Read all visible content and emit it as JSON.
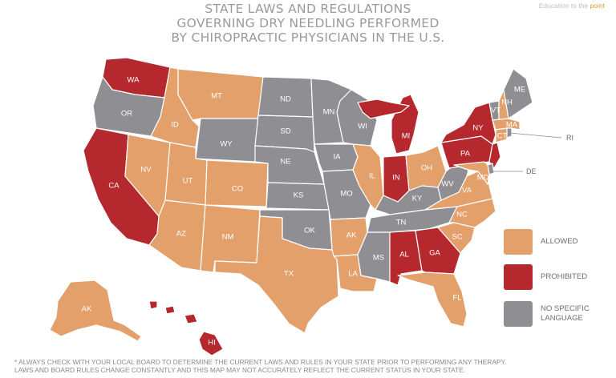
{
  "title": {
    "line1": "STATE LAWS AND REGULATIONS",
    "line2": "GOVERNING DRY NEEDLING PERFORMED",
    "line3": "BY CHIROPRACTIC PHYSICIANS IN THE U.S."
  },
  "brand": {
    "prefix": "Education to the ",
    "accent": "point"
  },
  "colors": {
    "allowed": "#e3a06a",
    "prohibited": "#b5282d",
    "no_specific": "#8e8e93"
  },
  "legend": [
    {
      "key": "allowed",
      "label": "ALLOWED"
    },
    {
      "key": "prohibited",
      "label": "PROHIBITED"
    },
    {
      "key": "no_specific",
      "label": "NO SPECIFIC LANGUAGE"
    }
  ],
  "states": {
    "WA": "prohibited",
    "OR": "no_specific",
    "CA": "prohibited",
    "NV": "allowed",
    "ID": "allowed",
    "MT": "allowed",
    "WY": "no_specific",
    "UT": "allowed",
    "AZ": "allowed",
    "CO": "allowed",
    "NM": "allowed",
    "ND": "no_specific",
    "SD": "no_specific",
    "NE": "no_specific",
    "KS": "no_specific",
    "OK": "no_specific",
    "TX": "allowed",
    "MN": "no_specific",
    "IA": "no_specific",
    "MO": "no_specific",
    "AK": "allowed",
    "LA": "allowed",
    "WI": "no_specific",
    "IL": "allowed",
    "MS": "no_specific",
    "MI": "prohibited",
    "IN": "prohibited",
    "KY": "no_specific",
    "TN": "no_specific",
    "AL": "prohibited",
    "GA": "prohibited",
    "FL": "allowed",
    "SC": "allowed",
    "NC": "allowed",
    "VA": "allowed",
    "WV": "no_specific",
    "OH": "allowed",
    "PA": "prohibited",
    "NY": "prohibited",
    "VT": "no_specific",
    "NH": "allowed",
    "ME": "no_specific",
    "MA": "allowed",
    "CT": "allowed",
    "RI": "no_specific",
    "NJ": "prohibited",
    "DE": "no_specific",
    "MD": "allowed",
    "ALASKA": "allowed",
    "HI": "prohibited"
  },
  "labels": {
    "WA": "WA",
    "OR": "OR",
    "CA": "CA",
    "NV": "NV",
    "ID": "ID",
    "MT": "MT",
    "WY": "WY",
    "UT": "UT",
    "AZ": "AZ",
    "CO": "CO",
    "NM": "NM",
    "ND": "ND",
    "SD": "SD",
    "NE": "NE",
    "KS": "KS",
    "OK": "OK",
    "TX": "TX",
    "MN": "MN",
    "IA": "IA",
    "MO": "MO",
    "AK": "AK",
    "LA": "LA",
    "WI": "WI",
    "IL": "IL",
    "MS": "MS",
    "MI": "MI",
    "IN": "IN",
    "KY": "KY",
    "TN": "TN",
    "AL": "AL",
    "GA": "GA",
    "FL": "FL",
    "SC": "SC",
    "NC": "NC",
    "VA": "VA",
    "WV": "WV",
    "OH": "OH",
    "PA": "PA",
    "NY": "NY",
    "VT": "VT",
    "NH": "NH",
    "ME": "ME",
    "MA": "MA",
    "CT": "CT",
    "RI": "RI",
    "DE": "DE",
    "MD": "MD",
    "ALASKA": "AK",
    "HI": "HI"
  },
  "footnote": {
    "line1": "* ALWAYS CHECK WITH YOUR LOCAL BOARD TO DETERMINE THE CURRENT LAWS AND RULES IN YOUR STATE PRIOR TO PERFORMING ANY THERAPY.",
    "line2": "LAWS AND BOARD RULES CHANGE CONSTANTLY AND THIS MAP MAY NOT ACCURATELY REFLECT THE CURRENT STATUS IN YOUR STATE."
  }
}
